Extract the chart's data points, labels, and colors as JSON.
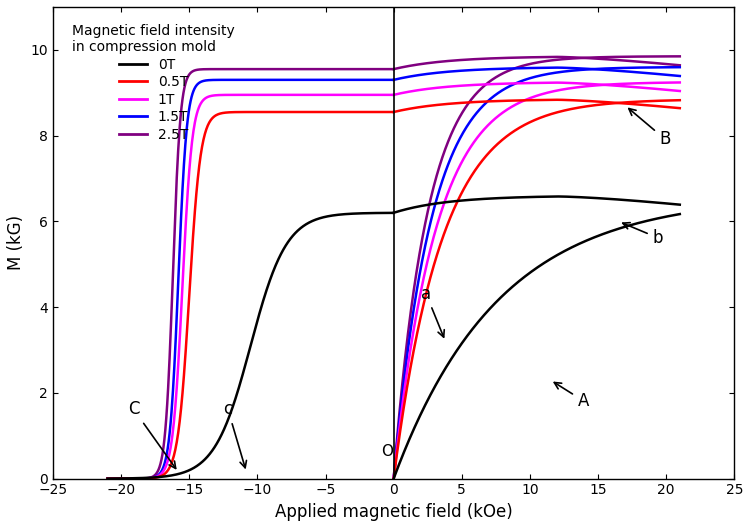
{
  "title": "",
  "xlabel": "Applied magnetic field (kOe)",
  "ylabel": "M (kG)",
  "xlim": [
    -25,
    25
  ],
  "ylim": [
    0,
    11
  ],
  "yticks": [
    0,
    2,
    4,
    6,
    8,
    10
  ],
  "xticks": [
    -25,
    -20,
    -15,
    -10,
    -5,
    0,
    5,
    10,
    15,
    20,
    25
  ],
  "legend_title": "Magnetic field intensity\nin compression mold",
  "legend_entries": [
    "0T",
    "0.5T",
    "1T",
    "1.5T",
    "2.5T"
  ],
  "colors": {
    "0T": "#000000",
    "0.5T": "#ff0000",
    "1T": "#ff00ff",
    "1.5T": "#0000ff",
    "2.5T": "#800080"
  },
  "background_color": "#ffffff",
  "curve_params": {
    "0T": {
      "M_sat": 6.6,
      "Mr": 6.2,
      "Hc": -10.5,
      "k_v": 0.13,
      "k_d": 0.38,
      "k_rise": 0.9
    },
    "0.5T": {
      "M_sat": 8.85,
      "Mr": 8.55,
      "Hc": -15.0,
      "k_v": 0.28,
      "k_d": 1.2,
      "k_rise": 1.8
    },
    "1T": {
      "M_sat": 9.25,
      "Mr": 8.95,
      "Hc": -15.5,
      "k_v": 0.32,
      "k_d": 1.4,
      "k_rise": 2.0
    },
    "1.5T": {
      "M_sat": 9.6,
      "Mr": 9.3,
      "Hc": -15.8,
      "k_v": 0.36,
      "k_d": 1.6,
      "k_rise": 2.2
    },
    "2.5T": {
      "M_sat": 9.85,
      "Mr": 9.55,
      "Hc": -16.2,
      "k_v": 0.4,
      "k_d": 1.8,
      "k_rise": 2.4
    }
  }
}
